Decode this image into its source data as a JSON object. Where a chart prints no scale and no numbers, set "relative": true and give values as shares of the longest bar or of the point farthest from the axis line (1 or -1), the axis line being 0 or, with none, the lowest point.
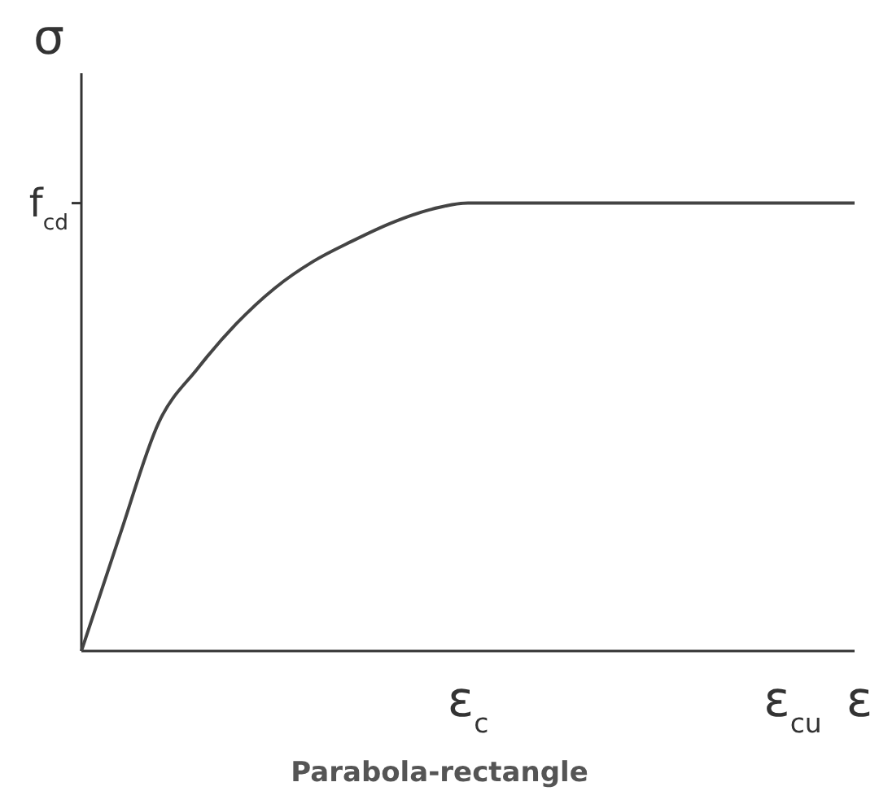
{
  "chart_data": {
    "type": "line",
    "title": "Parabola-rectangle",
    "xlabel": "ε",
    "ylabel": "σ",
    "relative": true,
    "categories": [
      null,
      null,
      null,
      null,
      null,
      null,
      null,
      null,
      null,
      null,
      null,
      null,
      null,
      null,
      null,
      null,
      null,
      null,
      null,
      null,
      null
    ],
    "series": [
      {
        "color": "#444444",
        "values": [
          0,
          0.26,
          0.51,
          0.63,
          0.73,
          0.81,
          0.87,
          0.915,
          0.955,
          0.985,
          1,
          1,
          1,
          1,
          1,
          1,
          1,
          1,
          1,
          1,
          1
        ]
      }
    ],
    "annotations": [
      "f$_{cd}$",
      "ε$_{c}$",
      "ε$_{cu}$"
    ],
    "grid": false,
    "marker": "none",
    "line_style": "solid"
  }
}
